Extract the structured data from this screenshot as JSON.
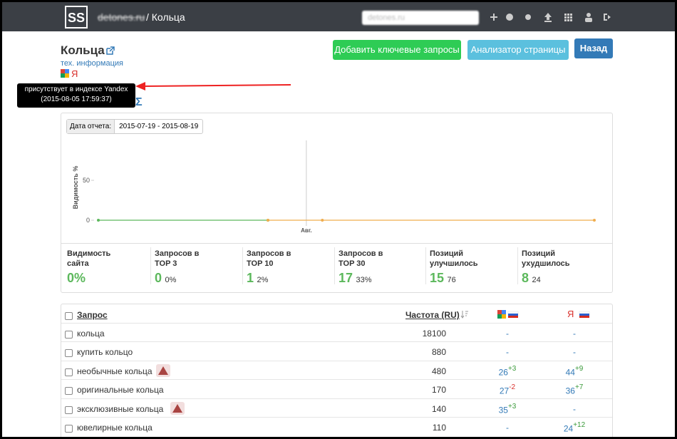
{
  "header": {
    "site": "detones.ru",
    "crumb": "/ Кольца",
    "select": "detones.ru"
  },
  "page": {
    "title": "Кольца",
    "tech_link": "тех. информация",
    "yandex_icon": "Я",
    "sigma": "Σ",
    "tooltip": [
      "присутствует в индексе Yandex",
      "(2015-08-05 17:59:37)"
    ],
    "buttons": [
      "Добавить ключевые запросы",
      "Анализатор страницы",
      "Назад"
    ]
  },
  "report": {
    "date_label": "Дата отчета:",
    "date_range": "2015-07-19 - 2015-08-19"
  },
  "chart_data": {
    "type": "line",
    "ylabel": "Видимость %",
    "ylim": [
      0,
      100
    ],
    "yticks": [
      0,
      50
    ],
    "xlim": [
      0,
      31
    ],
    "xticks": [
      {
        "value": 13,
        "label": "Авг."
      }
    ],
    "series": [
      {
        "color": "#5cb85c",
        "x": [
          0,
          10.6
        ],
        "values": [
          0,
          0
        ]
      },
      {
        "color": "#f0ad4e",
        "x": [
          10.6,
          14,
          31
        ],
        "values": [
          0,
          0,
          0
        ]
      }
    ]
  },
  "stats": [
    {
      "label": [
        "Видимость",
        "сайта"
      ],
      "value": "0%"
    },
    {
      "label": [
        "Запросов в",
        "TOP 3"
      ],
      "value": 0,
      "share": "0%"
    },
    {
      "label": [
        "Запросов в",
        "TOP 10"
      ],
      "value": 1,
      "share": "2%"
    },
    {
      "label": [
        "Запросов в",
        "TOP 30"
      ],
      "value": 17,
      "share": "33%"
    },
    {
      "label": [
        "Позиций",
        "улучшилось"
      ],
      "value": 15,
      "share": 76
    },
    {
      "label": [
        "Позиций",
        "ухудшилось"
      ],
      "value": 8,
      "share": 24
    }
  ],
  "table": {
    "headers": [
      "Запрос",
      "Частота (RU)"
    ],
    "rows": [
      {
        "query": "кольца",
        "freq": 18100,
        "google": "-",
        "yandex": "-"
      },
      {
        "query": "купить кольцо",
        "freq": 880,
        "google": "-",
        "yandex": "-"
      },
      {
        "query": "необычные кольца",
        "warn": true,
        "freq": 480,
        "google": "26",
        "google_delta": "+3",
        "yandex": "44",
        "yandex_delta": "+9"
      },
      {
        "query": "оригинальные кольца",
        "freq": 170,
        "google": "27",
        "google_delta": "-2",
        "yandex": "36",
        "yandex_delta": "+7"
      },
      {
        "query": "эксклюзивные кольца",
        "warn": true,
        "freq": 140,
        "google": "35",
        "google_delta": "+3",
        "yandex": "-"
      },
      {
        "query": "ювелирные кольца",
        "freq": 110,
        "google": "-",
        "yandex": "24",
        "yandex_delta": "+12"
      }
    ]
  }
}
